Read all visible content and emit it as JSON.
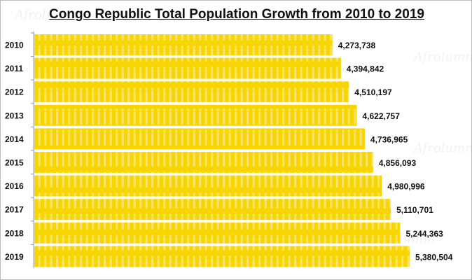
{
  "chart_data": {
    "type": "bar",
    "orientation": "horizontal",
    "title": "Congo Republic Total Population Growth from 2010 to 2019",
    "categories": [
      "2010",
      "2011",
      "2012",
      "2013",
      "2014",
      "2015",
      "2016",
      "2017",
      "2018",
      "2019"
    ],
    "values": [
      4273738,
      4394842,
      4510197,
      4622757,
      4736965,
      4856093,
      4980996,
      5110701,
      5244363,
      5380504
    ],
    "value_labels": [
      "4,273,738",
      "4,394,842",
      "4,510,197",
      "4,622,757",
      "4,736,965",
      "4,856,093",
      "4,980,996",
      "5,110,701",
      "5,244,363",
      "5,380,504"
    ],
    "xlim": [
      0,
      5380504
    ],
    "grid": false,
    "bar_color": "#f7d500",
    "xlabel": "",
    "ylabel": ""
  },
  "watermark": "Afrolumni"
}
